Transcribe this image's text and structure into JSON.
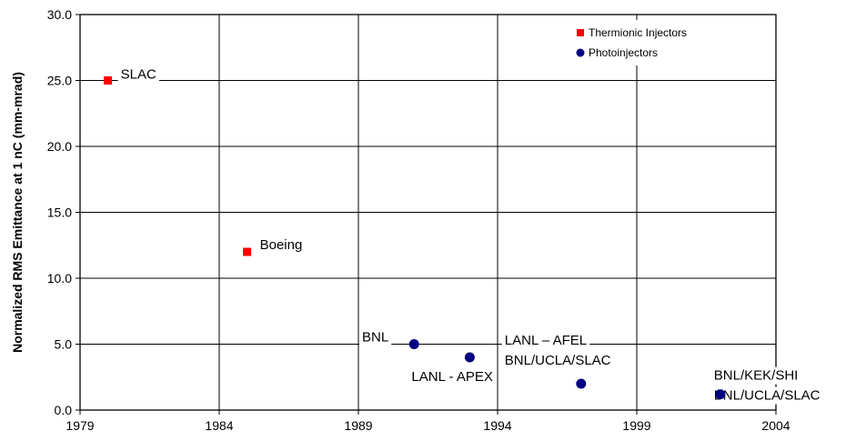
{
  "chart_data": {
    "type": "scatter",
    "title": "",
    "xlabel": "",
    "ylabel": "Normalized RMS Emittance at 1 nC (mm-mrad)",
    "xlim": [
      1979,
      2004
    ],
    "ylim": [
      0,
      30
    ],
    "x_ticks": [
      1979,
      1984,
      1989,
      1994,
      1999,
      2004
    ],
    "y_ticks": [
      0,
      5,
      10,
      15,
      20,
      25,
      30
    ],
    "x_tick_labels": [
      "1979",
      "1984",
      "1989",
      "1994",
      "1999",
      "2004"
    ],
    "y_tick_labels": [
      "0.0",
      "5.0",
      "10.0",
      "15.0",
      "20.0",
      "25.0",
      "30.0"
    ],
    "grid": true,
    "legend_position": "top-right",
    "series": [
      {
        "name": "Thermionic Injectors",
        "marker": "square",
        "color": "#ff0000",
        "points": [
          {
            "x": 1980,
            "y": 25.0
          },
          {
            "x": 1985,
            "y": 12.0
          }
        ]
      },
      {
        "name": "Photoinjectors",
        "marker": "circle",
        "color": "#000080",
        "points": [
          {
            "x": 1991,
            "y": 5.0
          },
          {
            "x": 1993,
            "y": 4.0
          },
          {
            "x": 1997,
            "y": 2.0
          },
          {
            "x": 2002,
            "y": 1.2
          }
        ]
      }
    ],
    "annotations": [
      {
        "text": "SLAC",
        "x": 1980,
        "y": 25.0
      },
      {
        "text": "Boeing",
        "x": 1985,
        "y": 12.0
      },
      {
        "text": "BNL",
        "x": 1991,
        "y": 5.0
      },
      {
        "text": "LANL - APEX",
        "x": 1993,
        "y": 4.0
      },
      {
        "text": "LANL – AFEL",
        "x": 1997,
        "y": 2.0
      },
      {
        "text": "BNL/UCLA/SLAC",
        "x": 1997,
        "y": 2.0
      },
      {
        "text": "BNL/KEK/SHI",
        "x": 2002,
        "y": 1.2
      },
      {
        "text": "BNL/UCLA/SLAC",
        "x": 2002,
        "y": 1.2
      }
    ]
  }
}
